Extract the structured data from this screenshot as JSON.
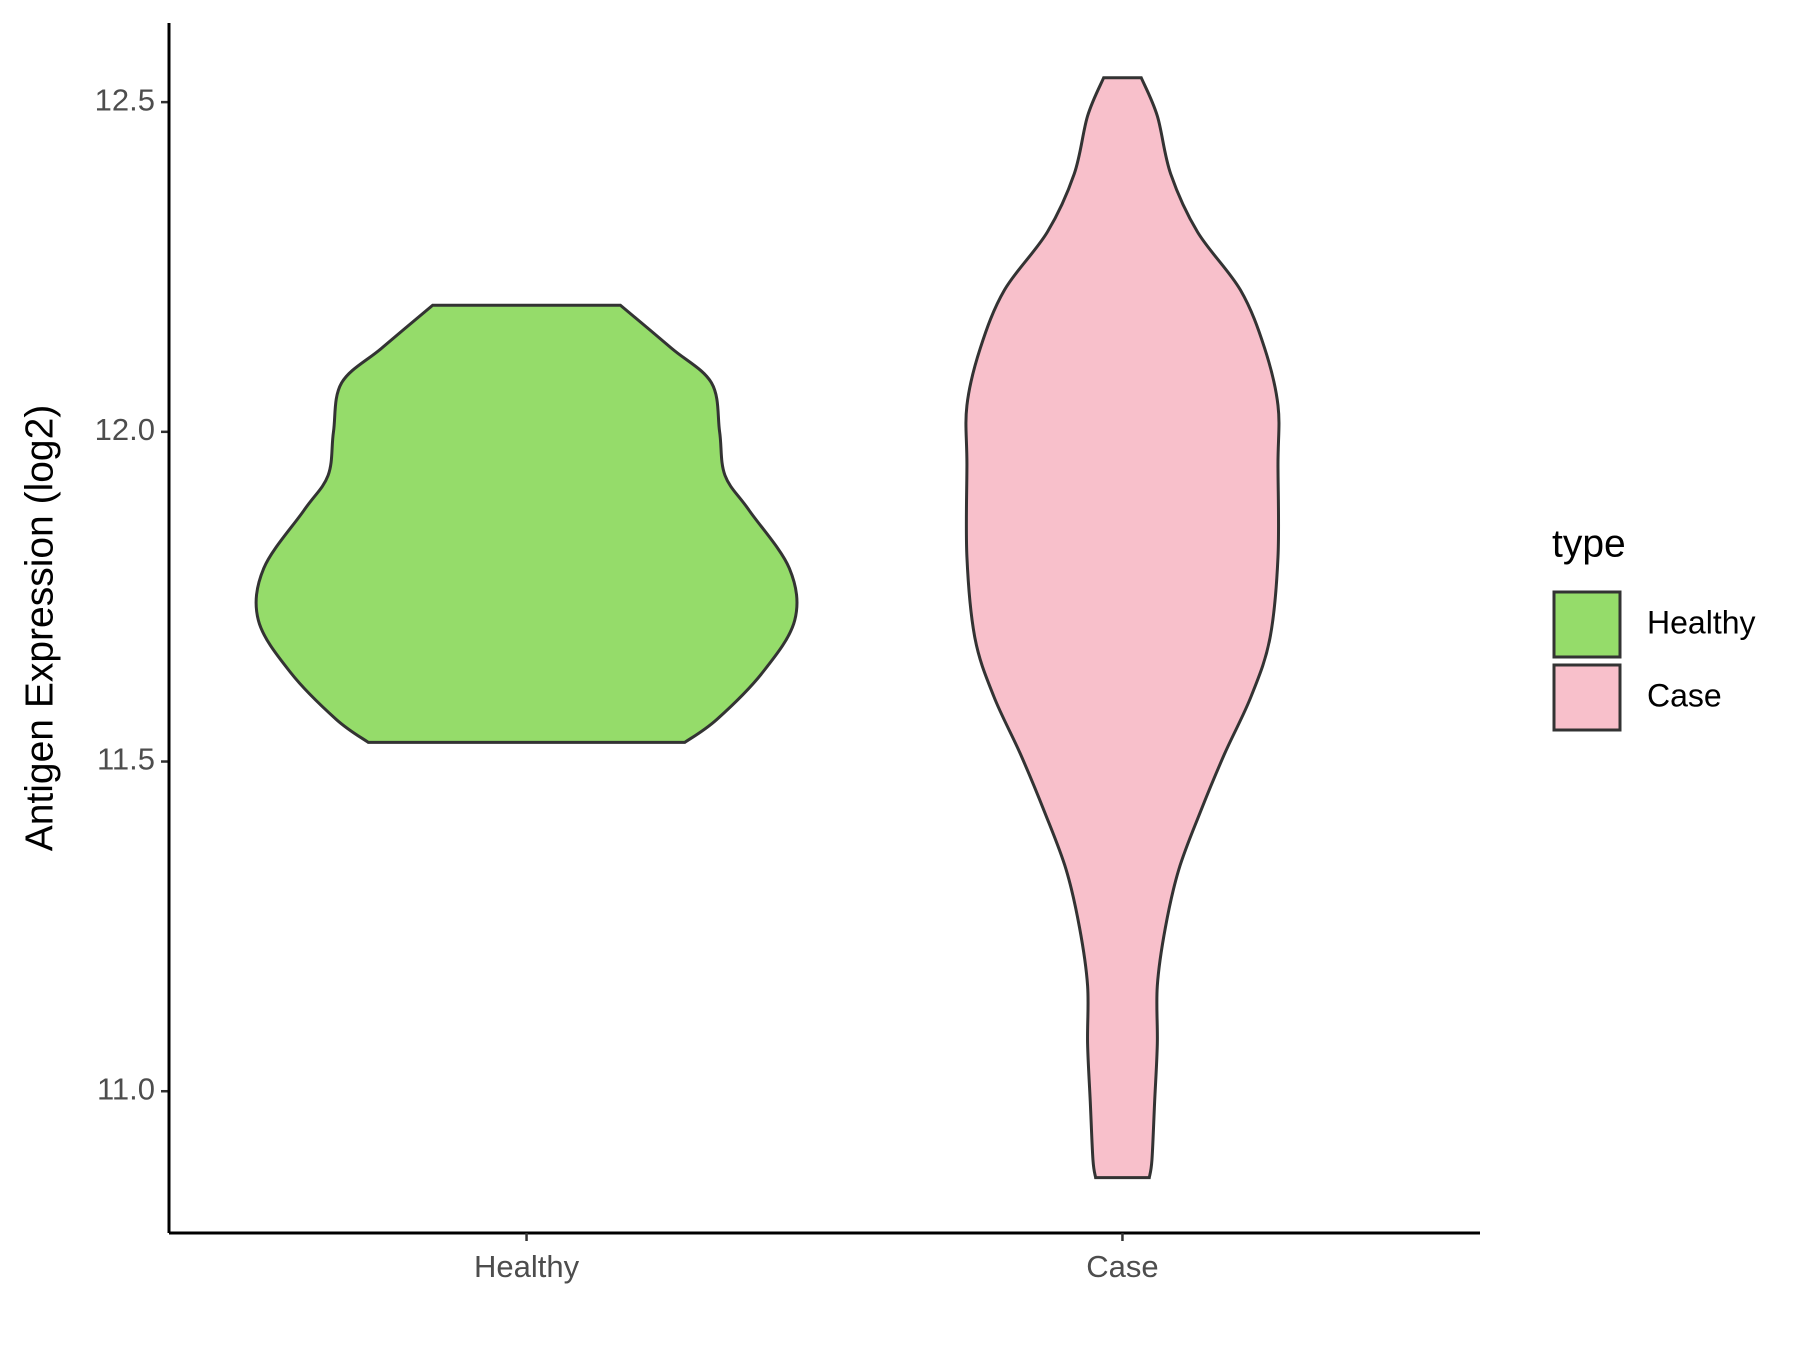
{
  "chart_data": {
    "type": "violin",
    "y_label": "Antigen Expression (log2)",
    "categories": [
      "Healthy",
      "Case"
    ],
    "legend_title": "type",
    "legend": "right",
    "ylim": [
      10.785,
      12.62
    ],
    "yticks": [
      {
        "value": 11,
        "label": "11.0"
      },
      {
        "value": 11.5,
        "label": "11.5"
      },
      {
        "value": 12,
        "label": "12.0"
      },
      {
        "value": 12.5,
        "label": "12.5"
      }
    ],
    "series": [
      {
        "name": "Healthy",
        "color": "#95dc6a",
        "y": [
          12.192,
          12.127,
          12.074,
          12.0,
          11.934,
          11.881,
          11.793,
          11.714,
          11.635,
          11.564,
          11.529
        ],
        "widths": [
          0.35,
          0.54,
          0.69,
          0.72,
          0.74,
          0.83,
          0.98,
          1.0,
          0.88,
          0.71,
          0.59
        ]
      },
      {
        "name": "Case",
        "color": "#f8c0cb",
        "y": [
          12.537,
          12.479,
          12.391,
          12.303,
          12.215,
          12.127,
          12.04,
          11.951,
          11.81,
          11.687,
          11.599,
          11.511,
          11.423,
          11.336,
          11.248,
          11.16,
          11.072,
          10.984,
          10.896,
          10.869
        ],
        "widths": [
          0.07,
          0.13,
          0.18,
          0.28,
          0.44,
          0.53,
          0.58,
          0.58,
          0.58,
          0.55,
          0.48,
          0.38,
          0.29,
          0.21,
          0.16,
          0.13,
          0.13,
          0.12,
          0.11,
          0.1
        ]
      }
    ]
  }
}
